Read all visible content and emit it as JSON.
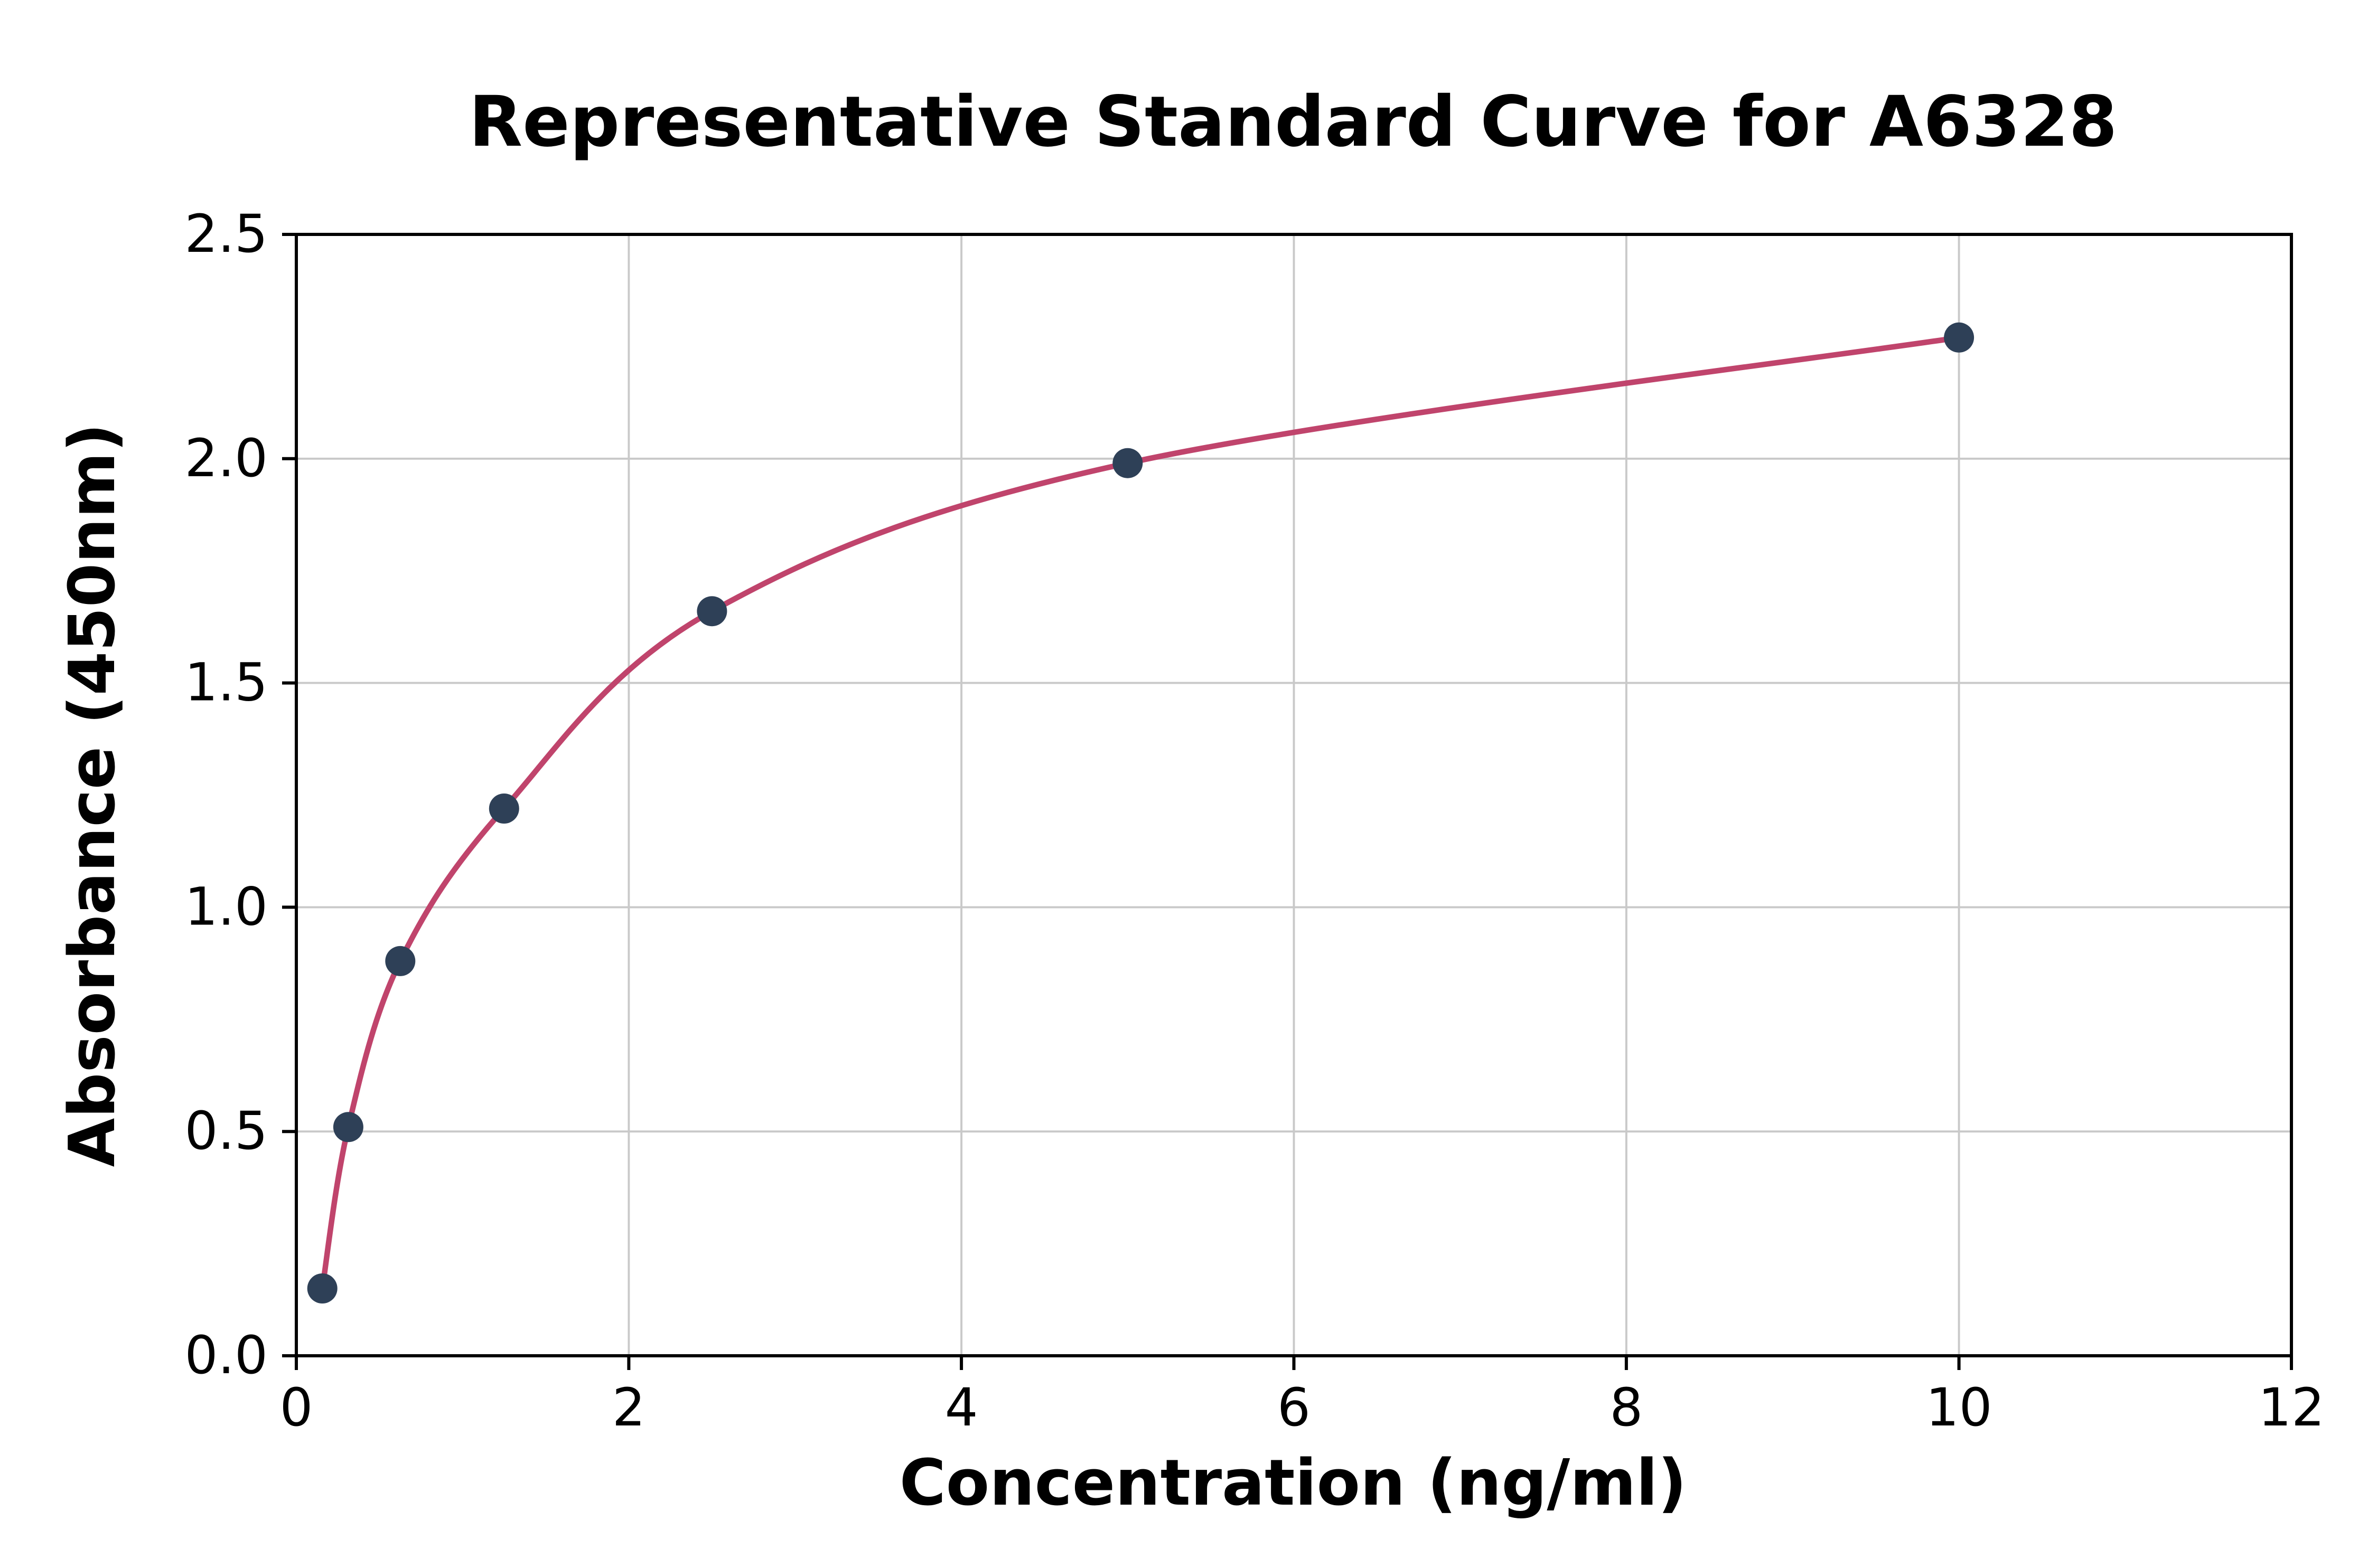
{
  "chart_data": {
    "type": "scatter",
    "title": "Representative Standard Curve for A6328",
    "xlabel": "Concentration (ng/ml)",
    "ylabel": "Absorbance (450nm)",
    "xlim": [
      0,
      12
    ],
    "ylim": [
      0,
      2.5
    ],
    "grid": true,
    "legend": "none",
    "line_color": "#c0446c",
    "marker_color": "#2e4057",
    "grid_color": "#c9c9c9",
    "axis_color": "#000000",
    "x_ticks": [
      {
        "value": 0,
        "label": "0"
      },
      {
        "value": 2,
        "label": "2"
      },
      {
        "value": 4,
        "label": "4"
      },
      {
        "value": 6,
        "label": "6"
      },
      {
        "value": 8,
        "label": "8"
      },
      {
        "value": 10,
        "label": "10"
      },
      {
        "value": 12,
        "label": "12"
      }
    ],
    "y_ticks": [
      {
        "value": 0.0,
        "label": "0.0"
      },
      {
        "value": 0.5,
        "label": "0.5"
      },
      {
        "value": 1.0,
        "label": "1.0"
      },
      {
        "value": 1.5,
        "label": "1.5"
      },
      {
        "value": 2.0,
        "label": "2.0"
      },
      {
        "value": 2.5,
        "label": "2.5"
      }
    ],
    "points": [
      {
        "x": 0.156,
        "y": 0.15
      },
      {
        "x": 0.3125,
        "y": 0.51
      },
      {
        "x": 0.625,
        "y": 0.88
      },
      {
        "x": 1.25,
        "y": 1.22
      },
      {
        "x": 2.5,
        "y": 1.66
      },
      {
        "x": 5.0,
        "y": 1.99
      },
      {
        "x": 10.0,
        "y": 2.27
      }
    ]
  }
}
